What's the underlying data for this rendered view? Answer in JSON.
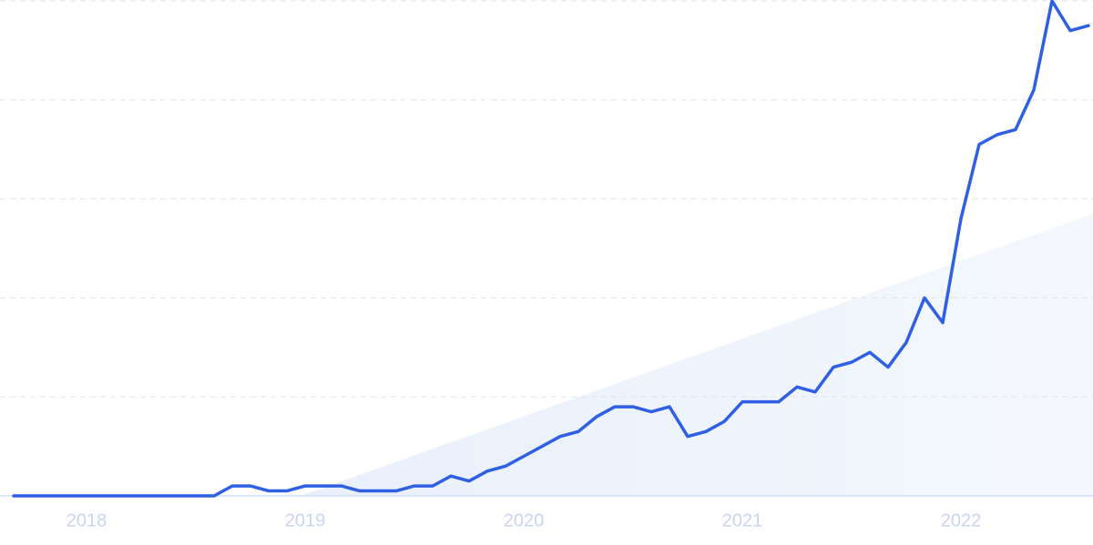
{
  "chart_data": {
    "type": "line",
    "categories": [
      null,
      null,
      null,
      null,
      "2018",
      null,
      null,
      null,
      null,
      null,
      null,
      null,
      null,
      null,
      null,
      null,
      "2019",
      null,
      null,
      null,
      null,
      null,
      null,
      null,
      null,
      null,
      null,
      null,
      "2020",
      null,
      null,
      null,
      null,
      null,
      null,
      null,
      null,
      null,
      null,
      null,
      "2021",
      null,
      null,
      null,
      null,
      null,
      null,
      null,
      null,
      null,
      null,
      null,
      "2022",
      null,
      null,
      null,
      null,
      null,
      null,
      null
    ],
    "values": [
      0,
      0,
      0,
      0,
      0,
      0,
      0,
      0,
      0,
      0,
      0,
      0,
      2,
      2,
      1,
      1,
      2,
      2,
      2,
      1,
      1,
      1,
      2,
      2,
      4,
      3,
      5,
      6,
      8,
      10,
      12,
      13,
      16,
      18,
      18,
      17,
      18,
      12,
      13,
      15,
      19,
      19,
      19,
      22,
      21,
      26,
      27,
      29,
      26,
      31,
      40,
      35,
      56,
      71,
      73,
      74,
      82,
      100,
      94,
      95
    ],
    "color": "#2f5fe3",
    "ylim": [
      0,
      100
    ],
    "yticks": [
      0,
      20,
      40,
      60,
      80,
      100
    ],
    "grid": true
  }
}
